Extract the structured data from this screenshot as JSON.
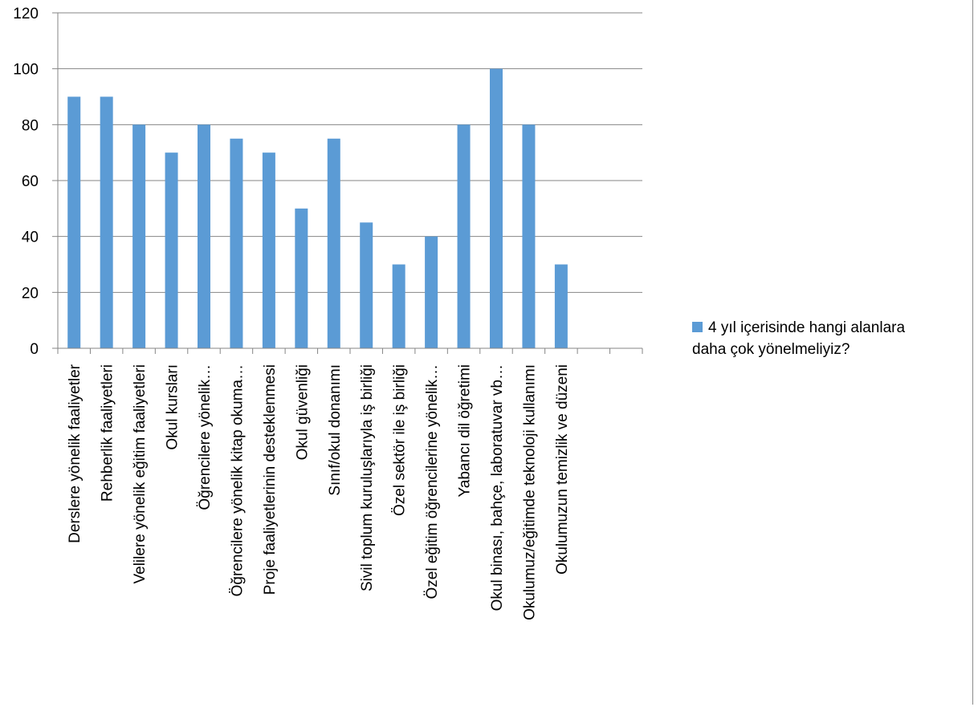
{
  "chart_data": {
    "type": "bar",
    "categories": [
      "Derslere yönelik faaliyetler",
      "Rehberlik faaliyetleri",
      "Velilere yönelik eğitim faaliyetleri",
      "Okul kursları",
      "Öğrencilere yönelik…",
      "Öğrencilere yönelik kitap okuma…",
      "Proje faaliyetlerinin desteklenmesi",
      "Okul güvenliği",
      "Sınıf/okul donanımı",
      "Sivil toplum kuruluşlarıyla iş birliği",
      "Özel sektör ile iş birliği",
      "Özel eğitim öğrencilerine yönelik…",
      "Yabancı dil öğretimi",
      "Okul binası, bahçe, laboratuvar vb…",
      "Okulumuz/eğitimde teknoloji kullanımı",
      "Okulumuzun temizlik ve düzeni",
      "",
      ""
    ],
    "series": [
      {
        "name": "4 yıl içerisinde hangi alanlara daha çok yönelmeliyiz?",
        "values": [
          90,
          90,
          80,
          70,
          80,
          75,
          70,
          50,
          75,
          45,
          30,
          40,
          80,
          100,
          80,
          30,
          null,
          null
        ],
        "color": "#5b9bd5"
      }
    ],
    "yticks": [
      "0",
      "20",
      "40",
      "60",
      "80",
      "100",
      "120"
    ],
    "ylim": [
      0,
      120
    ],
    "grid": true,
    "legend": {
      "placement": "right",
      "lines": [
        "4 yıl içerisinde hangi alanlara",
        "daha çok yönelmeliyiz?"
      ]
    }
  }
}
